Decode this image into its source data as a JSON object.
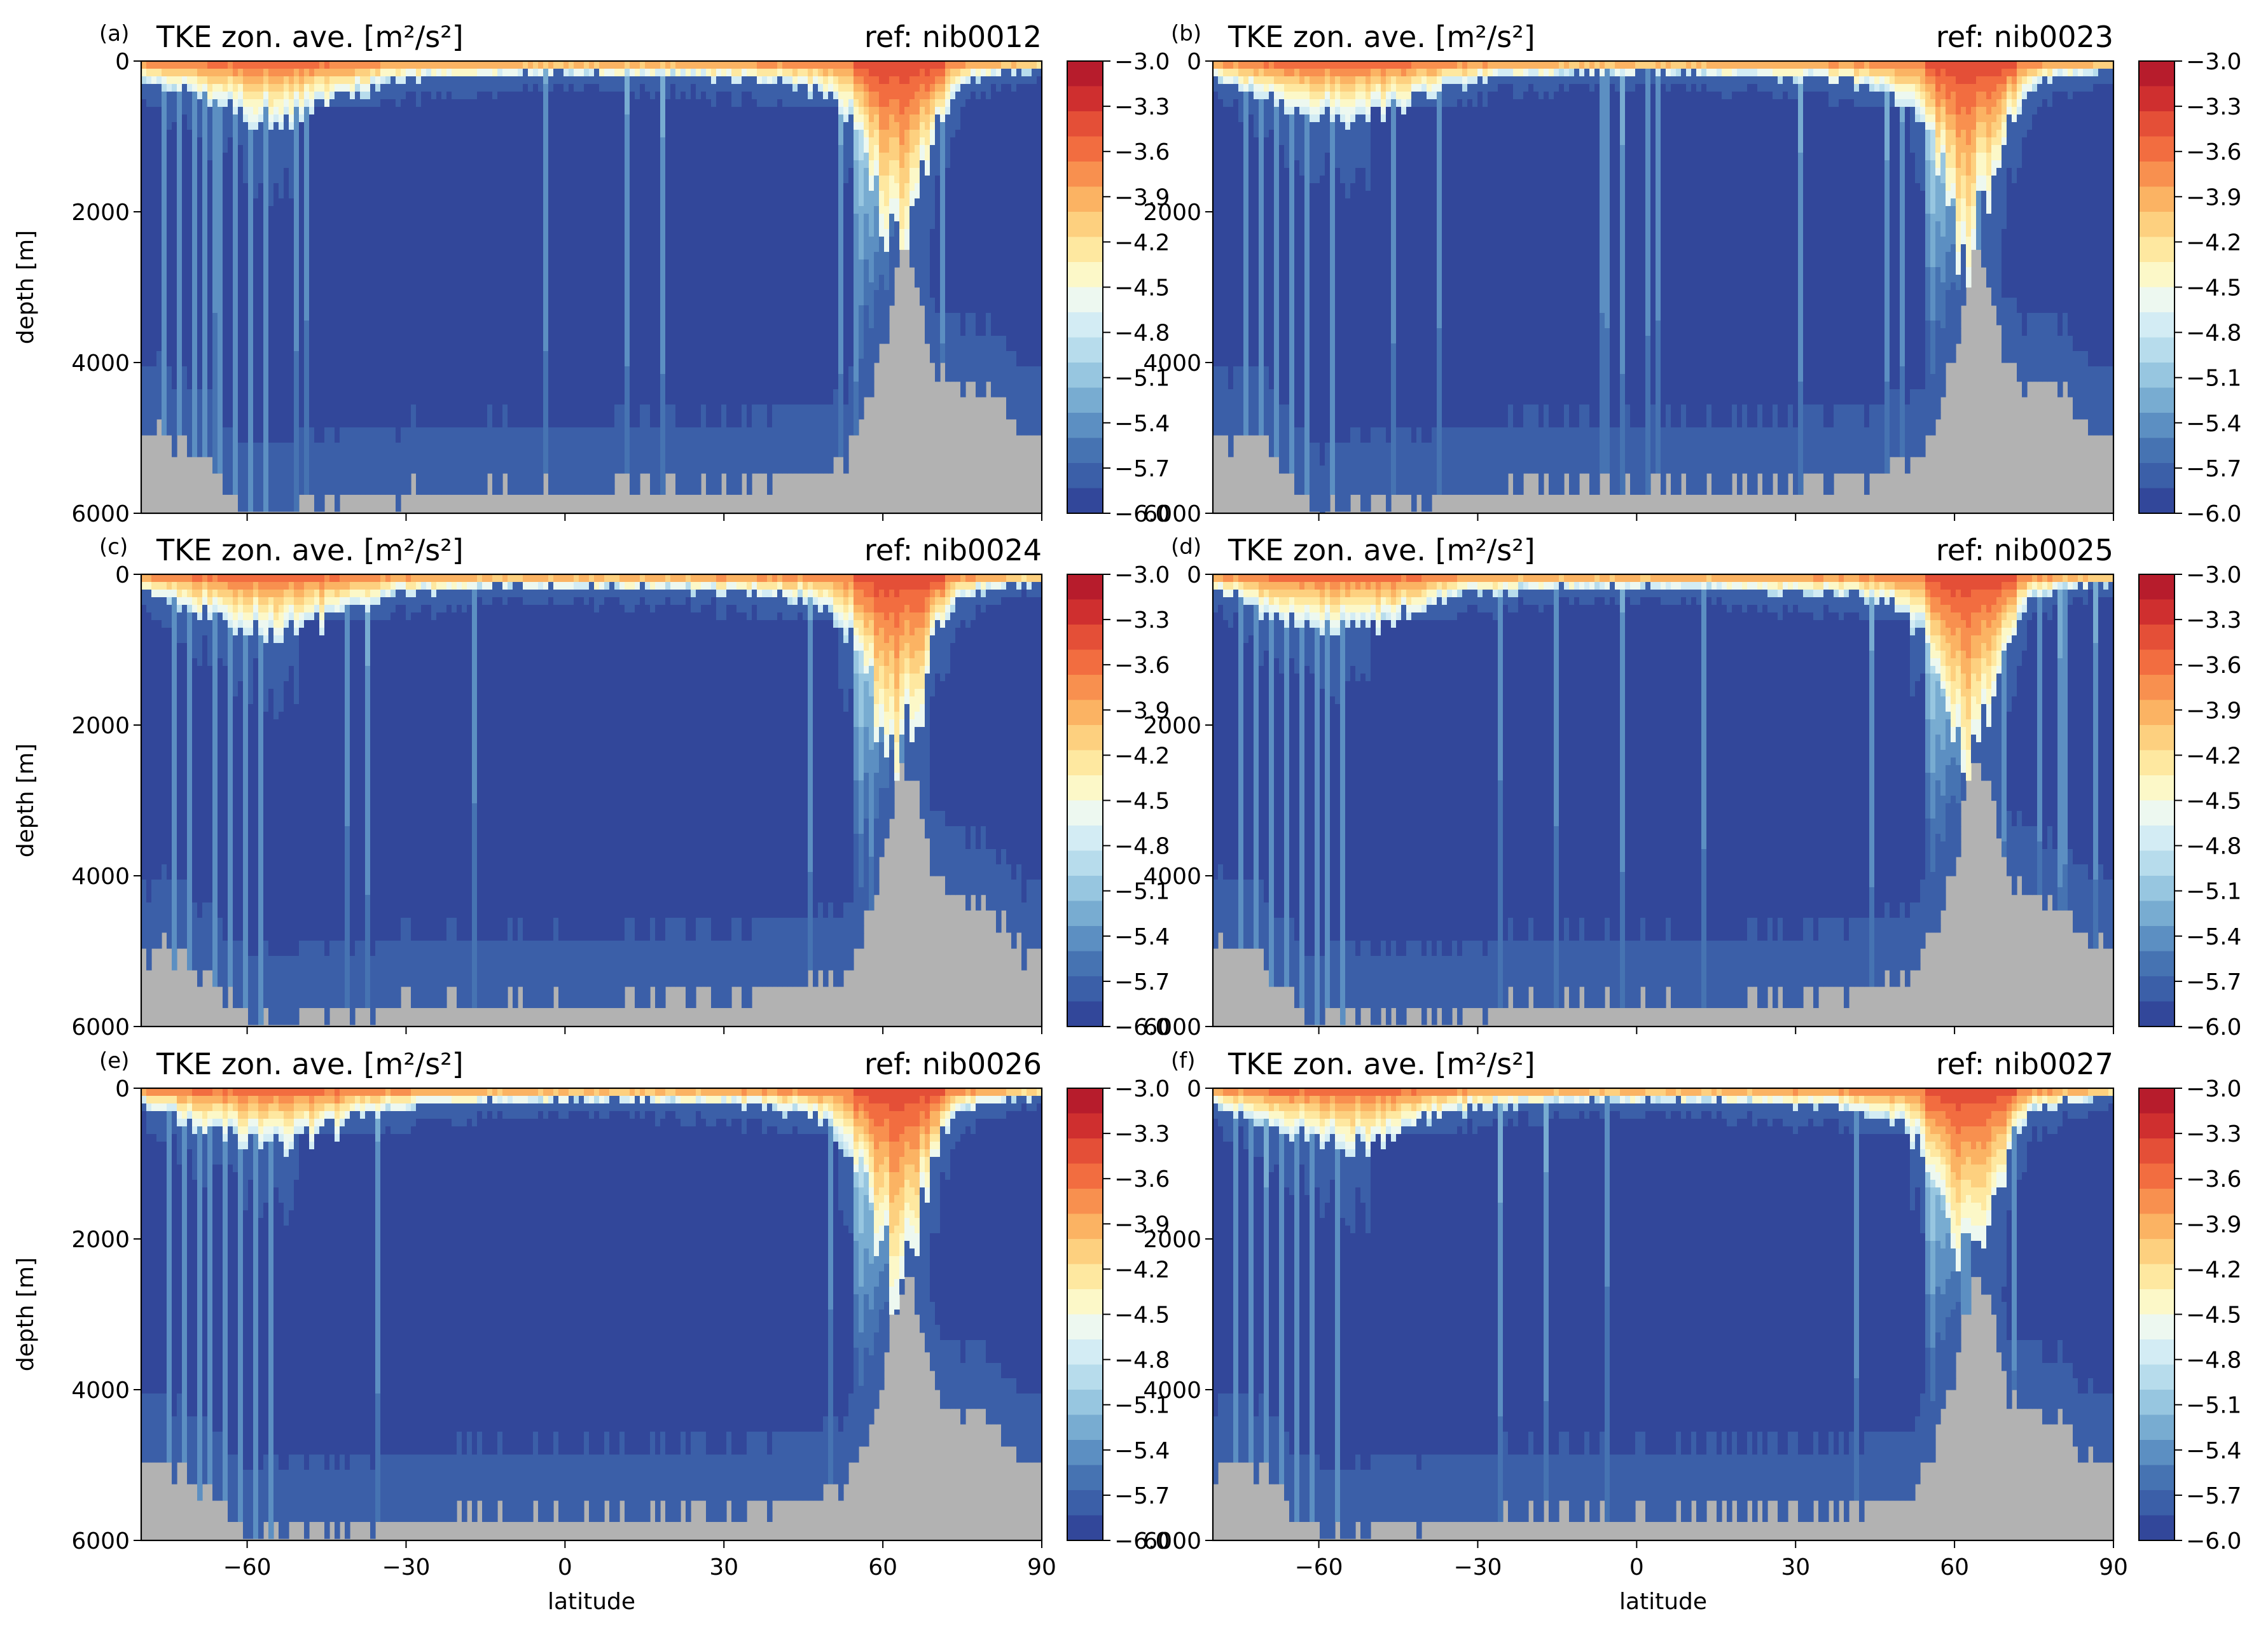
{
  "figure": {
    "x_ticks": [
      -60,
      -30,
      0,
      30,
      60,
      90
    ],
    "y_ticks": [
      0,
      2000,
      4000,
      6000
    ],
    "x_range": [
      -80,
      90
    ],
    "y_range": [
      0,
      6000
    ],
    "x_label": "latitude",
    "y_label": "depth [m]"
  },
  "colorbar": {
    "levels": [
      -3.0,
      -3.3,
      -3.6,
      -3.9,
      -4.2,
      -4.5,
      -4.8,
      -5.1,
      -5.4,
      -5.7,
      -6.0
    ],
    "level_labels": [
      "−3.0",
      "−3.3",
      "−3.6",
      "−3.9",
      "−4.2",
      "−4.5",
      "−4.8",
      "−5.1",
      "−5.4",
      "−5.7",
      "−6.0"
    ],
    "colors": [
      "#b71c2c",
      "#cf2f2f",
      "#e44f37",
      "#f26d40",
      "#f8904f",
      "#fbb363",
      "#fdd07f",
      "#fee8a0",
      "#fcf8c8",
      "#edf8f0",
      "#d3ecf4",
      "#b7dcec",
      "#97c6e0",
      "#78acd1",
      "#5c8fc2",
      "#4673b2",
      "#3b5fa8",
      "#32479a"
    ],
    "land_color": "#b2b2b2"
  },
  "panels": [
    {
      "letter": "(a)",
      "title": "TKE zon. ave. [m²/s²]",
      "ref": "ref: nib0012",
      "show_xlabels": false,
      "show_ylabel": true
    },
    {
      "letter": "(b)",
      "title": "TKE zon. ave. [m²/s²]",
      "ref": "ref: nib0023",
      "show_xlabels": false,
      "show_ylabel": false
    },
    {
      "letter": "(c)",
      "title": "TKE zon. ave. [m²/s²]",
      "ref": "ref: nib0024",
      "show_xlabels": false,
      "show_ylabel": true
    },
    {
      "letter": "(d)",
      "title": "TKE zon. ave. [m²/s²]",
      "ref": "ref: nib0025",
      "show_xlabels": false,
      "show_ylabel": false
    },
    {
      "letter": "(e)",
      "title": "TKE zon. ave. [m²/s²]",
      "ref": "ref: nib0026",
      "show_xlabels": true,
      "show_ylabel": true
    },
    {
      "letter": "(f)",
      "title": "TKE zon. ave. [m²/s²]",
      "ref": "ref: nib0027",
      "show_xlabels": true,
      "show_ylabel": false
    }
  ],
  "chart_data": {
    "type": "heatmap",
    "variable": "log10 TKE, zonal average",
    "units": "m²/s²",
    "x_axis": {
      "name": "latitude",
      "range": [
        -80,
        90
      ],
      "ticks": [
        -60,
        -30,
        0,
        30,
        60,
        90
      ]
    },
    "y_axis": {
      "name": "depth [m]",
      "range": [
        0,
        6000
      ],
      "ticks": [
        0,
        2000,
        4000,
        6000
      ],
      "inverted": true
    },
    "color_scale": {
      "min": -6.0,
      "max": -3.0,
      "levels": 18,
      "colormap": "RdYlBu_r"
    },
    "series": [
      {
        "name": "nib0012"
      },
      {
        "name": "nib0023"
      },
      {
        "name": "nib0024"
      },
      {
        "name": "nib0025"
      },
      {
        "name": "nib0026"
      },
      {
        "name": "nib0027"
      }
    ],
    "bathymetry_profile_lat": [
      -80,
      -74,
      -73,
      -70,
      -66,
      -62,
      -60,
      -50,
      -40,
      -20,
      0,
      20,
      40,
      50,
      53,
      54,
      56,
      58,
      60,
      62,
      64,
      66,
      68,
      70,
      72,
      74,
      76,
      78,
      80,
      82,
      84,
      86,
      88,
      90
    ],
    "bathymetry_profile_depth": [
      5000,
      5000,
      5000,
      5200,
      5500,
      5800,
      6000,
      5900,
      5800,
      5700,
      5700,
      5700,
      5600,
      5400,
      5300,
      5100,
      4800,
      4400,
      3800,
      3100,
      2500,
      2700,
      3400,
      4000,
      4200,
      4300,
      4300,
      4400,
      4400,
      4600,
      4800,
      5000,
      5000,
      5000
    ],
    "mixed_layer_depth_lat": [
      -80,
      -75,
      -70,
      -65,
      -60,
      -55,
      -50,
      -45,
      -40,
      -30,
      -20,
      -10,
      0,
      10,
      20,
      30,
      40,
      45,
      50,
      55,
      58,
      60,
      62,
      65,
      68,
      70,
      75,
      80,
      85,
      90
    ],
    "mixed_layer_depth_m": [
      200,
      350,
      500,
      600,
      700,
      800,
      750,
      600,
      450,
      250,
      200,
      180,
      180,
      180,
      200,
      230,
      280,
      350,
      500,
      900,
      1600,
      2200,
      2600,
      2100,
      1500,
      800,
      300,
      200,
      150,
      120
    ]
  }
}
